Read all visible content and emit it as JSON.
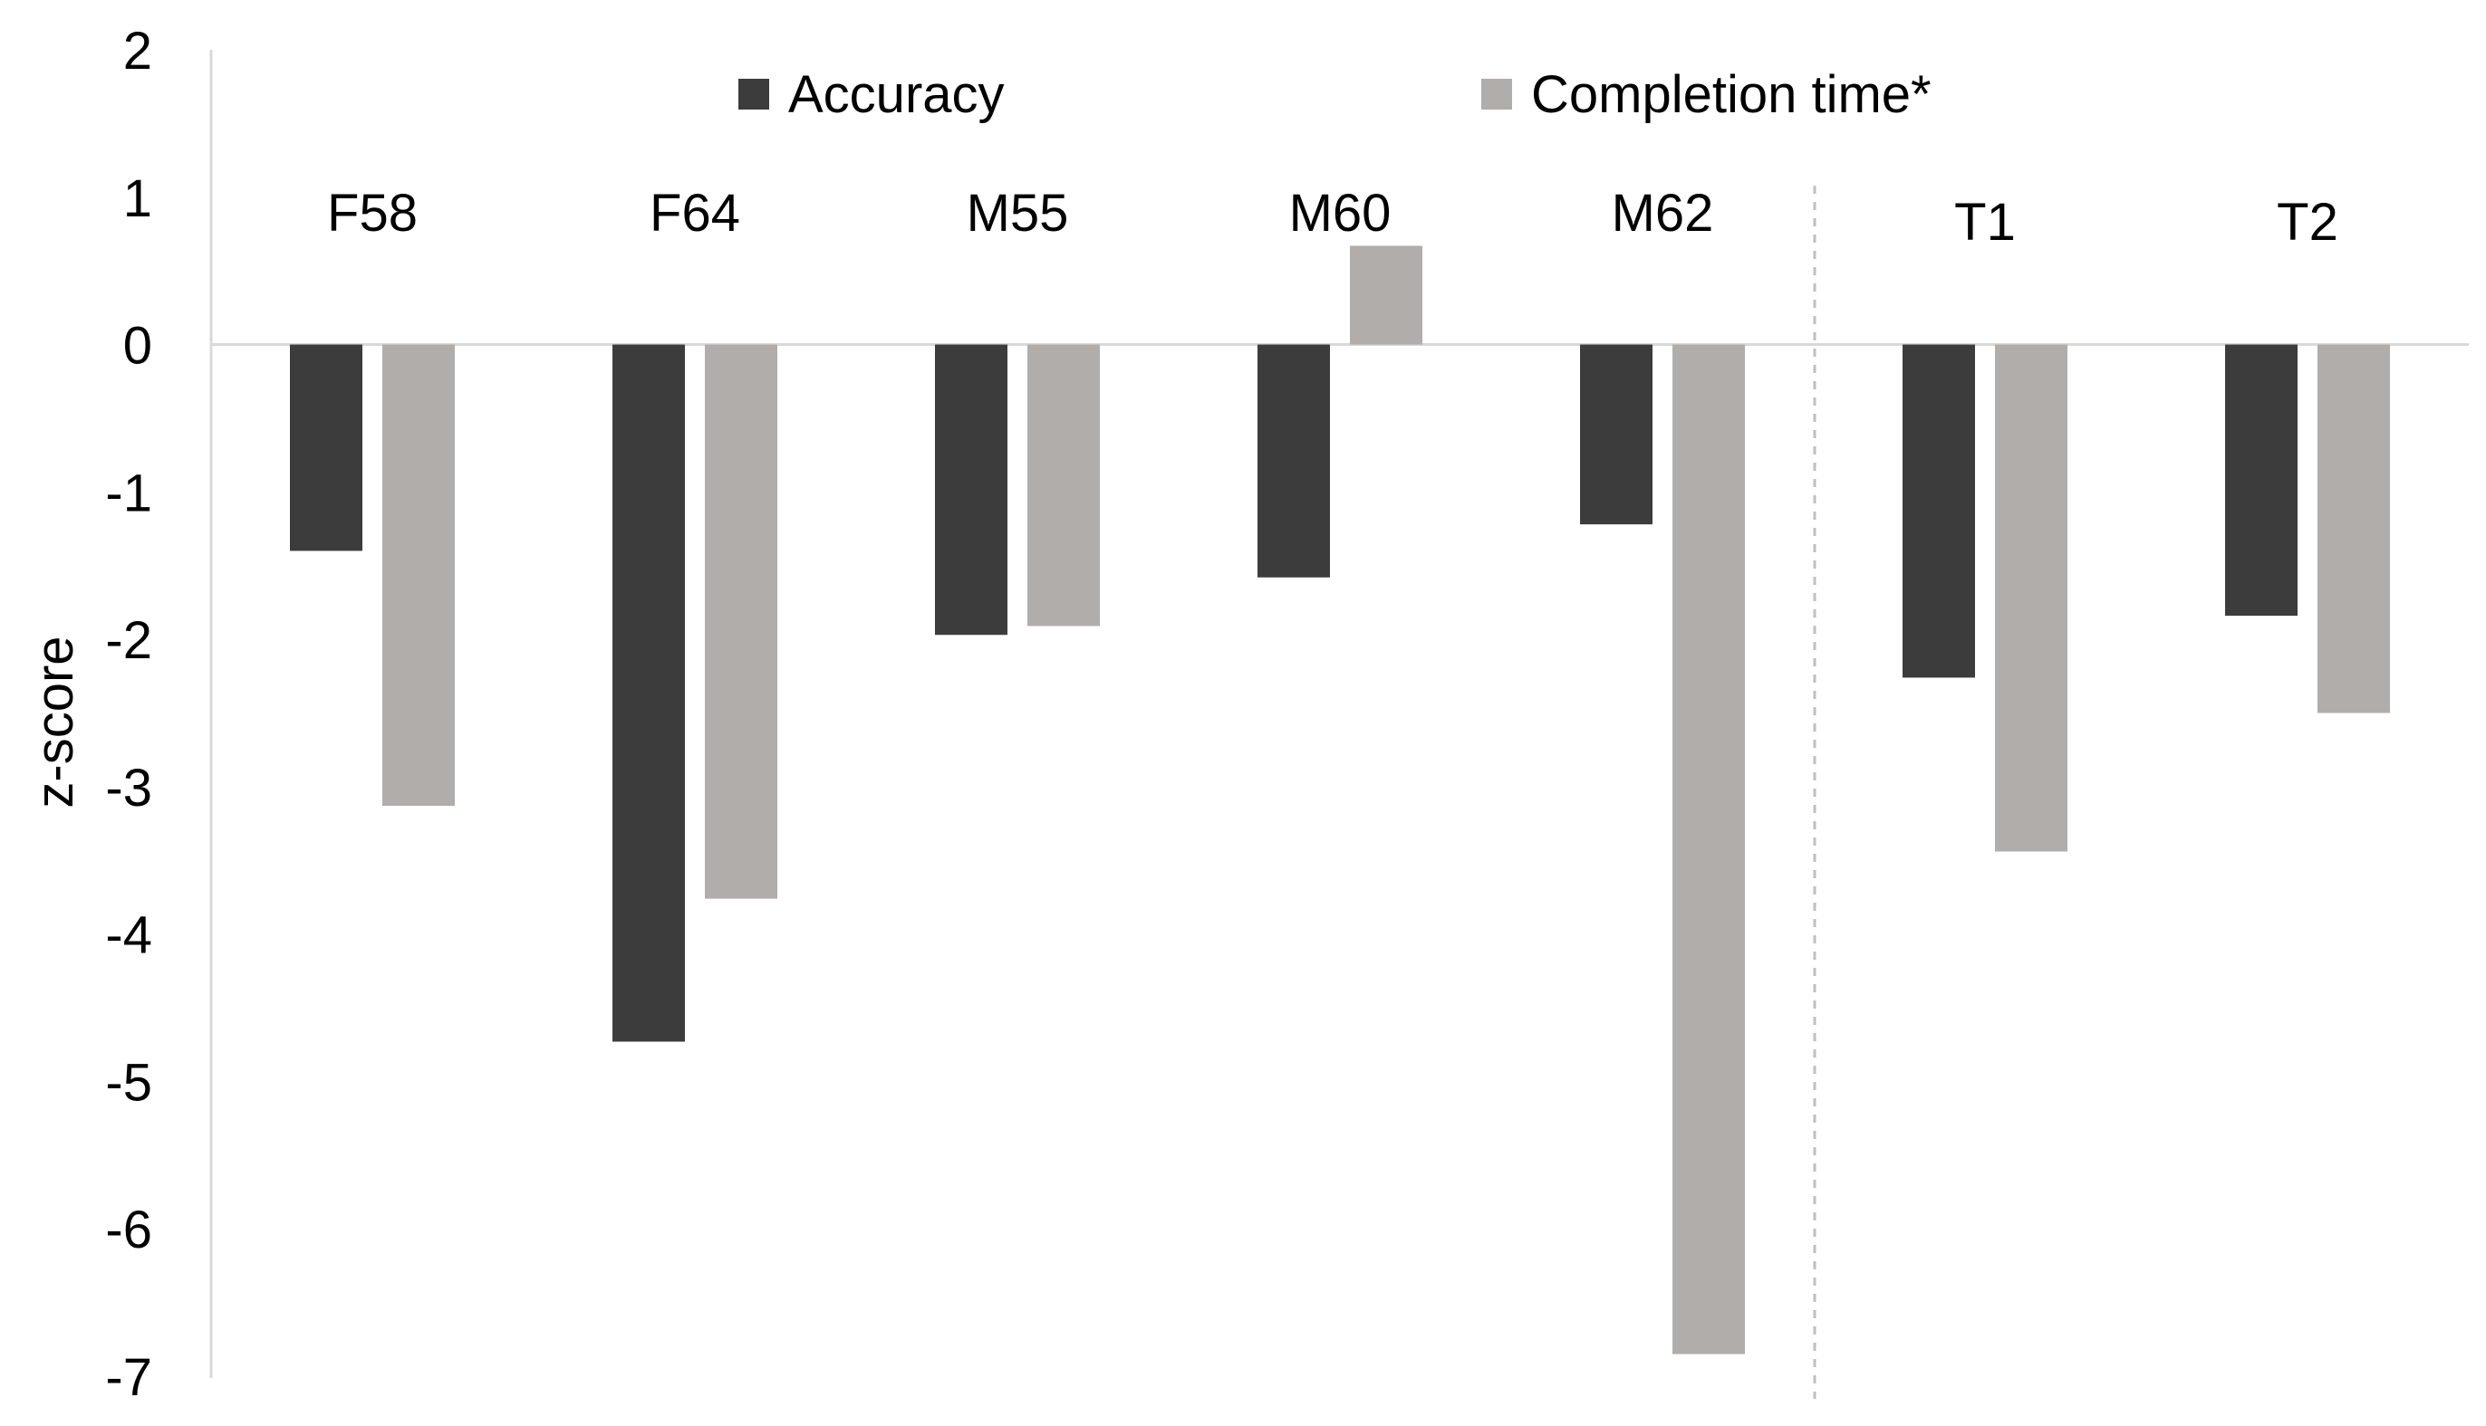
{
  "chart_data": {
    "type": "bar",
    "title": "",
    "xlabel": "",
    "ylabel": "z-score",
    "ylim": [
      -7,
      2
    ],
    "yticks": [
      2,
      1,
      0,
      -1,
      -2,
      -3,
      -4,
      -5,
      -6,
      -7
    ],
    "ytick_labels": [
      "2",
      "1",
      "0",
      "-1",
      "-2",
      "-3",
      "-4",
      "-5",
      "-6",
      "-7"
    ],
    "categories": [
      "F58",
      "F64",
      "M55",
      "M60",
      "M62",
      "T1",
      "T2"
    ],
    "series": [
      {
        "name": "Accuracy",
        "color": "#3c3c3c",
        "values": [
          -1.4,
          -4.73,
          -1.97,
          -1.58,
          -1.22,
          -2.26,
          -1.84
        ]
      },
      {
        "name": "Completion time*",
        "color": "#b1adab",
        "values": [
          -3.13,
          -3.76,
          -1.91,
          0.67,
          -6.85,
          -3.44,
          -2.5
        ]
      }
    ],
    "legend_position": "top",
    "grid": false,
    "separator_after_category": "M62"
  }
}
